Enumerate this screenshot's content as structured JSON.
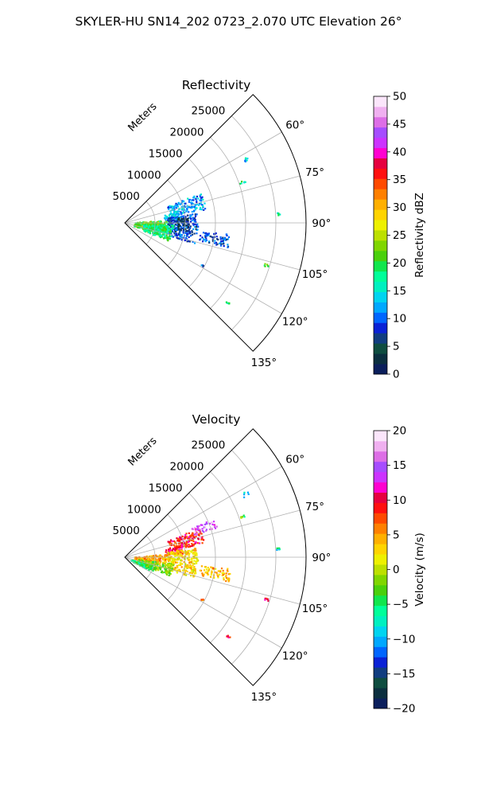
{
  "figure": {
    "suptitle": "SKYLER-HU  SN14_202  0723_2.070 UTC Elevation 26°",
    "range_label": "Meters"
  },
  "chart_data": [
    {
      "type": "heatmap",
      "projection": "polar-sector",
      "title": "Reflectivity",
      "azimuth_range_deg": [
        45,
        135
      ],
      "azimuth_ticks": [
        60,
        75,
        90,
        105,
        120,
        135
      ],
      "azimuth_tick_labels": [
        "60°",
        "75°",
        "90°",
        "105°",
        "120°",
        "135°"
      ],
      "range_ticks": [
        5000,
        10000,
        15000,
        20000,
        25000
      ],
      "range_tick_labels": [
        "5000",
        "10000",
        "15000",
        "20000",
        "25000"
      ],
      "rmax": 30000,
      "grid": true,
      "colorbar": {
        "label": "Reflectivity dBZ",
        "vmin": 0,
        "vmax": 50,
        "ticks": [
          0,
          5,
          10,
          15,
          20,
          25,
          30,
          35,
          40,
          45,
          50
        ],
        "tick_labels": [
          "0",
          "5",
          "10",
          "15",
          "20",
          "25",
          "30",
          "35",
          "40",
          "45",
          "50"
        ],
        "colors": [
          "#0b1f5c",
          "#0b2f3f",
          "#0f4d40",
          "#113d80",
          "#0a22d6",
          "#0066ff",
          "#00a8ff",
          "#00d4f0",
          "#00f0c0",
          "#00ff9a",
          "#11e64d",
          "#4ad00c",
          "#80d600",
          "#bde000",
          "#eef000",
          "#ffd400",
          "#ffb000",
          "#ff8000",
          "#ff4a00",
          "#ff1010",
          "#e60040",
          "#ff00d0",
          "#cc33ff",
          "#a64dff",
          "#dd6ee6",
          "#f0b0f0",
          "#fbe6fb"
        ]
      },
      "echo_regions": [
        {
          "az": [
            68,
            80
          ],
          "r": [
            7500,
            13500
          ],
          "value": 12
        },
        {
          "az": [
            78,
            86
          ],
          "r": [
            6500,
            9000
          ],
          "value": 13
        },
        {
          "az": [
            82,
            106
          ],
          "r": [
            7000,
            12000
          ],
          "value": 9
        },
        {
          "az": [
            85,
            108
          ],
          "r": [
            1500,
            7000
          ],
          "value": 21
        },
        {
          "az": [
            92,
            112
          ],
          "r": [
            3000,
            8000
          ],
          "value": 18
        },
        {
          "az": [
            84,
            97
          ],
          "r": [
            8500,
            10500
          ],
          "value": 4
        },
        {
          "az": [
            96,
            103
          ],
          "r": [
            12500,
            17500
          ],
          "value": 9
        },
        {
          "az": [
            61,
            63
          ],
          "r": [
            22000,
            23000
          ],
          "value": 14
        },
        {
          "az": [
            70,
            71
          ],
          "r": [
            20000,
            21000
          ],
          "value": 17
        },
        {
          "az": [
            86,
            87
          ],
          "r": [
            25000,
            25600
          ],
          "value": 17
        },
        {
          "az": [
            106,
            107
          ],
          "r": [
            24000,
            24700
          ],
          "value": 20
        },
        {
          "az": [
            118,
            119
          ],
          "r": [
            14200,
            14700
          ],
          "value": 10
        },
        {
          "az": [
            127,
            128
          ],
          "r": [
            21000,
            21700
          ],
          "value": 19
        }
      ]
    },
    {
      "type": "heatmap",
      "projection": "polar-sector",
      "title": "Velocity",
      "azimuth_range_deg": [
        45,
        135
      ],
      "azimuth_ticks": [
        60,
        75,
        90,
        105,
        120,
        135
      ],
      "azimuth_tick_labels": [
        "60°",
        "75°",
        "90°",
        "105°",
        "120°",
        "135°"
      ],
      "range_ticks": [
        5000,
        10000,
        15000,
        20000,
        25000
      ],
      "range_tick_labels": [
        "5000",
        "10000",
        "15000",
        "20000",
        "25000"
      ],
      "rmax": 30000,
      "grid": true,
      "colorbar": {
        "label": "Velocity (m/s)",
        "vmin": -20,
        "vmax": 20,
        "ticks": [
          -20,
          -15,
          -10,
          -5,
          0,
          5,
          10,
          15,
          20
        ],
        "tick_labels": [
          "−20",
          "−15",
          "−10",
          "−5",
          "0",
          "5",
          "10",
          "15",
          "20"
        ],
        "colors": [
          "#0b1f5c",
          "#0b2f3f",
          "#0f4d40",
          "#113d80",
          "#0a22d6",
          "#0066ff",
          "#00a8ff",
          "#00d4f0",
          "#00f0c0",
          "#00ff9a",
          "#11e64d",
          "#4ad00c",
          "#80d600",
          "#bde000",
          "#eef000",
          "#ffd400",
          "#ffb000",
          "#ff8000",
          "#ff4a00",
          "#ff1010",
          "#e60040",
          "#ff00d0",
          "#cc33ff",
          "#a64dff",
          "#dd6ee6",
          "#f0b0f0",
          "#fbe6fb"
        ]
      },
      "echo_regions": [
        {
          "az": [
            68,
            80
          ],
          "r": [
            7500,
            13500
          ],
          "value": 9
        },
        {
          "az": [
            66,
            72
          ],
          "r": [
            12000,
            16000
          ],
          "value": 15
        },
        {
          "az": [
            78,
            86
          ],
          "r": [
            6500,
            9500
          ],
          "value": 10
        },
        {
          "az": [
            82,
            106
          ],
          "r": [
            7000,
            12000
          ],
          "value": 3
        },
        {
          "az": [
            85,
            100
          ],
          "r": [
            1500,
            7000
          ],
          "value": 5
        },
        {
          "az": [
            97,
            112
          ],
          "r": [
            2000,
            8000
          ],
          "value": -2
        },
        {
          "az": [
            108,
            118
          ],
          "r": [
            1000,
            5000
          ],
          "value": -5
        },
        {
          "az": [
            96,
            103
          ],
          "r": [
            12500,
            17500
          ],
          "value": 4
        },
        {
          "az": [
            61,
            63
          ],
          "r": [
            22000,
            23000
          ],
          "value": -8
        },
        {
          "az": [
            70,
            71
          ],
          "r": [
            20000,
            21000
          ],
          "value": -3
        },
        {
          "az": [
            86,
            87
          ],
          "r": [
            25000,
            25600
          ],
          "value": -7
        },
        {
          "az": [
            106,
            107
          ],
          "r": [
            24000,
            24700
          ],
          "value": 10
        },
        {
          "az": [
            118,
            119
          ],
          "r": [
            14200,
            14700
          ],
          "value": 6
        },
        {
          "az": [
            127,
            128
          ],
          "r": [
            21000,
            21700
          ],
          "value": 10
        }
      ]
    }
  ]
}
